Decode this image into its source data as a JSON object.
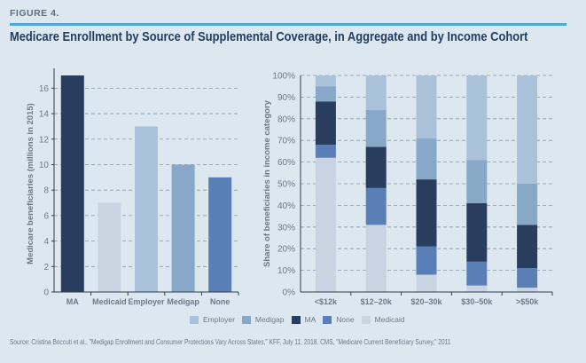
{
  "figure_label": "FIGURE 4.",
  "title": "Medicare Enrollment by Source of Supplemental Coverage, in Aggregate and by Income Cohort",
  "source": "Source: Cristina Boccuti et al., \"Medigap Enrollment and Consumer Protections Vary Across States,\" KFF, July 11, 2018. CMS, \"Medicare Current Beneficiary Survey,\" 2011",
  "colors": {
    "MA": "#293d5e",
    "Medicaid": "#c9d4e3",
    "Employer": "#a9c1d9",
    "Medigap": "#87a8c9",
    "None": "#5a7fb6",
    "axis": "#2b3b4e",
    "grid": "#8c98a4"
  },
  "legend": [
    {
      "label": "Employer",
      "key": "Employer"
    },
    {
      "label": "Medigap",
      "key": "Medigap"
    },
    {
      "label": "MA",
      "key": "MA"
    },
    {
      "label": "None",
      "key": "None"
    },
    {
      "label": "Medicaid",
      "key": "Medicaid"
    }
  ],
  "chart_data": [
    {
      "type": "bar",
      "title": "",
      "categories": [
        "MA",
        "Medicaid",
        "Employer",
        "Medigap",
        "None"
      ],
      "values": [
        17,
        7,
        13,
        10,
        9
      ],
      "xlabel": "",
      "ylabel": "Medicare beneficiaries (millions in 2015)",
      "ylim": [
        0,
        17
      ],
      "yticks": [
        0,
        2,
        4,
        6,
        8,
        10,
        12,
        14,
        16
      ],
      "grid": true
    },
    {
      "type": "bar",
      "stacked": true,
      "title": "",
      "categories": [
        "<$12k",
        "$12–20k",
        "$20–30k",
        "$30–50k",
        ">$50k"
      ],
      "series": [
        {
          "name": "Medicaid",
          "values": [
            62,
            31,
            8,
            3,
            2
          ]
        },
        {
          "name": "None",
          "values": [
            6,
            17,
            13,
            11,
            9
          ]
        },
        {
          "name": "MA",
          "values": [
            20,
            19,
            31,
            27,
            20
          ]
        },
        {
          "name": "Medigap",
          "values": [
            7,
            17,
            19,
            20,
            19
          ]
        },
        {
          "name": "Employer",
          "values": [
            5,
            16,
            29,
            39,
            50
          ]
        }
      ],
      "xlabel": "",
      "ylabel": "Share of beneficiaries in income category",
      "ylim": [
        0,
        100
      ],
      "yticks": [
        "0%",
        "10%",
        "20%",
        "30%",
        "40%",
        "50%",
        "60%",
        "70%",
        "80%",
        "90%",
        "100%"
      ],
      "grid": true,
      "legend_position": "bottom"
    }
  ]
}
